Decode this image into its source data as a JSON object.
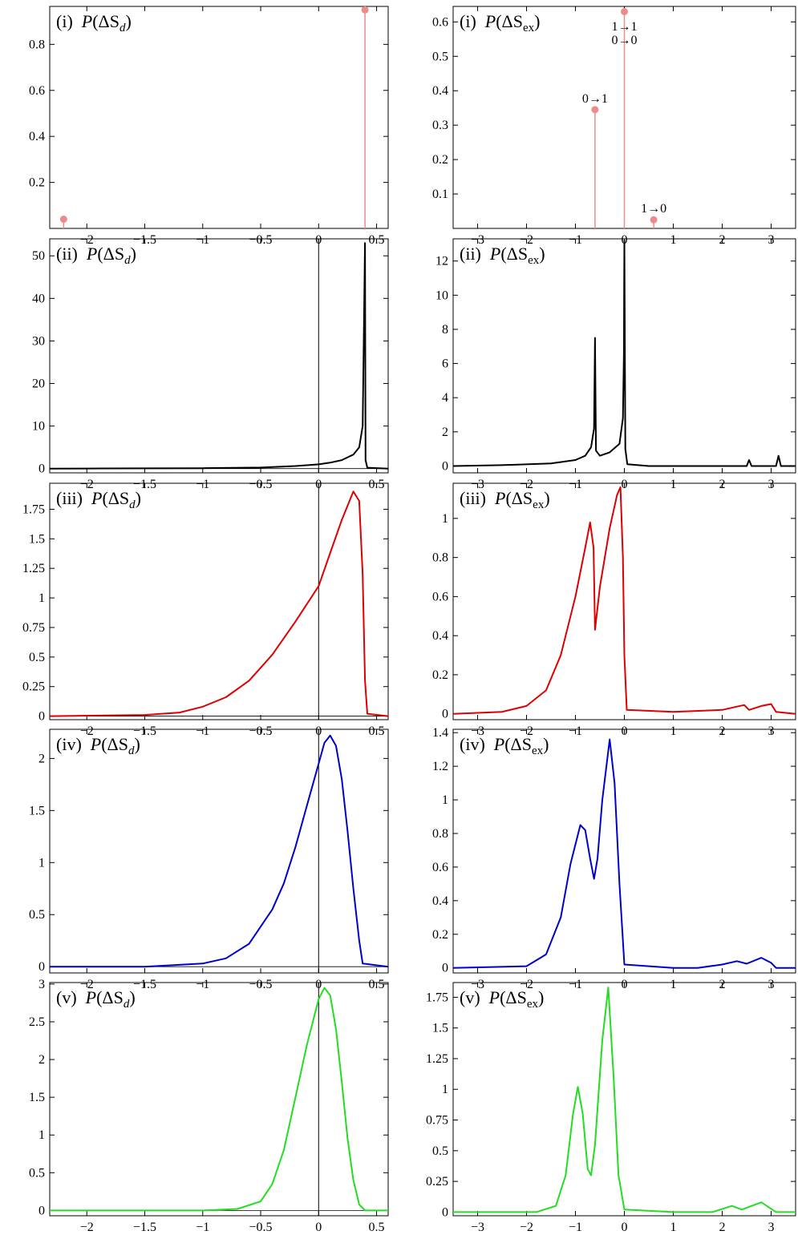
{
  "chart_data": [
    {
      "id": "d1",
      "panel": "(i)",
      "quantity": "d",
      "type": "stem",
      "xlim": [
        -2.32,
        0.6
      ],
      "ylim": [
        0.0,
        0.965
      ],
      "xticks": [
        -2,
        -1.5,
        -1,
        -0.5,
        0,
        0.5
      ],
      "yticks": [
        0.2,
        0.4,
        0.6,
        0.8
      ],
      "color": "#ee8a8a",
      "zero_axis": false,
      "points": [
        [
          -2.2,
          0.04
        ],
        [
          0.4,
          0.95
        ]
      ],
      "annotations": []
    },
    {
      "id": "e1",
      "panel": "(i)",
      "quantity": "ex",
      "type": "stem",
      "xlim": [
        -3.5,
        3.5
      ],
      "ylim": [
        0.0,
        0.645
      ],
      "xticks": [
        -3,
        -2,
        -1,
        0,
        1,
        2,
        3
      ],
      "yticks": [
        0.1,
        0.2,
        0.3,
        0.4,
        0.5,
        0.6
      ],
      "color": "#ee8a8a",
      "zero_axis": false,
      "points": [
        [
          -0.6,
          0.345
        ],
        [
          0.0,
          0.63
        ],
        [
          0.6,
          0.025
        ]
      ],
      "annotations": [
        {
          "text": "1→1",
          "x": 0.0,
          "y": 0.575
        },
        {
          "text": "0→0",
          "x": 0.0,
          "y": 0.535
        },
        {
          "text": "0→1",
          "x": -0.6,
          "y": 0.365
        },
        {
          "text": "1→0",
          "x": 0.6,
          "y": 0.047
        }
      ]
    },
    {
      "id": "d2",
      "panel": "(ii)",
      "quantity": "d",
      "type": "line",
      "xlim": [
        -2.32,
        0.6
      ],
      "ylim": [
        -1.0,
        54.0
      ],
      "xticks": [
        -2,
        -1.5,
        -1,
        -0.5,
        0,
        0.5
      ],
      "yticks": [
        0,
        10,
        20,
        30,
        40,
        50
      ],
      "color": "#000000",
      "zero_axis": true,
      "points": [
        [
          -2.32,
          0.0
        ],
        [
          -2.0,
          0.02
        ],
        [
          -1.5,
          0.05
        ],
        [
          -1.0,
          0.1
        ],
        [
          -0.5,
          0.25
        ],
        [
          -0.2,
          0.6
        ],
        [
          0.0,
          1.0
        ],
        [
          0.1,
          1.4
        ],
        [
          0.2,
          2.0
        ],
        [
          0.3,
          3.3
        ],
        [
          0.35,
          5.0
        ],
        [
          0.38,
          10.0
        ],
        [
          0.4,
          53.0
        ],
        [
          0.405,
          2.0
        ],
        [
          0.42,
          0.2
        ],
        [
          0.6,
          0.0
        ]
      ],
      "annotations": []
    },
    {
      "id": "e2",
      "panel": "(ii)",
      "quantity": "ex",
      "type": "line",
      "xlim": [
        -3.5,
        3.5
      ],
      "ylim": [
        -0.4,
        13.3
      ],
      "xticks": [
        -3,
        -2,
        -1,
        0,
        1,
        2,
        3
      ],
      "yticks": [
        0,
        2,
        4,
        6,
        8,
        10,
        12
      ],
      "color": "#000000",
      "zero_axis": false,
      "points": [
        [
          -3.5,
          0.0
        ],
        [
          -2.5,
          0.05
        ],
        [
          -1.5,
          0.15
        ],
        [
          -1.0,
          0.35
        ],
        [
          -0.8,
          0.6
        ],
        [
          -0.68,
          1.1
        ],
        [
          -0.62,
          2.2
        ],
        [
          -0.6,
          7.5
        ],
        [
          -0.58,
          0.9
        ],
        [
          -0.5,
          0.6
        ],
        [
          -0.3,
          0.8
        ],
        [
          -0.1,
          1.3
        ],
        [
          -0.03,
          2.8
        ],
        [
          -0.01,
          6.5
        ],
        [
          0.0,
          13.2
        ],
        [
          0.02,
          1.0
        ],
        [
          0.06,
          0.1
        ],
        [
          0.5,
          0.0
        ],
        [
          2.5,
          0.0
        ],
        [
          2.55,
          0.35
        ],
        [
          2.6,
          0.0
        ],
        [
          3.1,
          0.0
        ],
        [
          3.15,
          0.6
        ],
        [
          3.2,
          0.0
        ],
        [
          3.5,
          0.0
        ]
      ],
      "annotations": []
    },
    {
      "id": "d3",
      "panel": "(iii)",
      "quantity": "d",
      "type": "line",
      "xlim": [
        -2.32,
        0.6
      ],
      "ylim": [
        -0.03,
        1.97
      ],
      "xticks": [
        -2,
        -1.5,
        -1,
        -0.5,
        0,
        0.5
      ],
      "yticks": [
        0,
        0.25,
        0.5,
        0.75,
        1,
        1.25,
        1.5,
        1.75
      ],
      "color": "#dd0000",
      "zero_axis": true,
      "points": [
        [
          -2.32,
          0.0
        ],
        [
          -1.5,
          0.01
        ],
        [
          -1.2,
          0.03
        ],
        [
          -1.0,
          0.08
        ],
        [
          -0.8,
          0.16
        ],
        [
          -0.6,
          0.3
        ],
        [
          -0.4,
          0.52
        ],
        [
          -0.2,
          0.8
        ],
        [
          0.0,
          1.1
        ],
        [
          0.1,
          1.38
        ],
        [
          0.2,
          1.66
        ],
        [
          0.3,
          1.9
        ],
        [
          0.35,
          1.82
        ],
        [
          0.38,
          1.2
        ],
        [
          0.4,
          0.3
        ],
        [
          0.42,
          0.02
        ],
        [
          0.6,
          0.0
        ]
      ],
      "annotations": []
    },
    {
      "id": "e3",
      "panel": "(iii)",
      "quantity": "ex",
      "type": "line",
      "xlim": [
        -3.5,
        3.5
      ],
      "ylim": [
        -0.03,
        1.18
      ],
      "xticks": [
        -3,
        -2,
        -1,
        0,
        1,
        2,
        3
      ],
      "yticks": [
        0,
        0.2,
        0.4,
        0.6,
        0.8,
        1
      ],
      "color": "#dd0000",
      "zero_axis": false,
      "points": [
        [
          -3.5,
          0.0
        ],
        [
          -2.5,
          0.01
        ],
        [
          -2.0,
          0.04
        ],
        [
          -1.6,
          0.12
        ],
        [
          -1.3,
          0.3
        ],
        [
          -1.0,
          0.6
        ],
        [
          -0.8,
          0.85
        ],
        [
          -0.7,
          0.98
        ],
        [
          -0.63,
          0.85
        ],
        [
          -0.6,
          0.43
        ],
        [
          -0.5,
          0.65
        ],
        [
          -0.3,
          0.95
        ],
        [
          -0.15,
          1.12
        ],
        [
          -0.08,
          1.16
        ],
        [
          -0.03,
          0.8
        ],
        [
          0.0,
          0.3
        ],
        [
          0.05,
          0.02
        ],
        [
          1.0,
          0.01
        ],
        [
          2.0,
          0.02
        ],
        [
          2.45,
          0.045
        ],
        [
          2.55,
          0.02
        ],
        [
          2.8,
          0.04
        ],
        [
          3.0,
          0.05
        ],
        [
          3.1,
          0.01
        ],
        [
          3.5,
          0.0
        ]
      ],
      "annotations": []
    },
    {
      "id": "d4",
      "panel": "(iv)",
      "quantity": "d",
      "type": "line",
      "xlim": [
        -2.32,
        0.6
      ],
      "ylim": [
        -0.06,
        2.28
      ],
      "xticks": [
        -2,
        -1.5,
        -1,
        -0.5,
        0,
        0.5
      ],
      "yticks": [
        0,
        0.5,
        1,
        1.5,
        2
      ],
      "color": "#0000cc",
      "zero_axis": true,
      "points": [
        [
          -2.32,
          0.0
        ],
        [
          -1.5,
          0.0
        ],
        [
          -1.0,
          0.03
        ],
        [
          -0.8,
          0.08
        ],
        [
          -0.6,
          0.22
        ],
        [
          -0.4,
          0.55
        ],
        [
          -0.3,
          0.8
        ],
        [
          -0.2,
          1.15
        ],
        [
          -0.1,
          1.55
        ],
        [
          0.0,
          1.95
        ],
        [
          0.05,
          2.15
        ],
        [
          0.1,
          2.22
        ],
        [
          0.15,
          2.12
        ],
        [
          0.2,
          1.8
        ],
        [
          0.25,
          1.3
        ],
        [
          0.3,
          0.75
        ],
        [
          0.35,
          0.25
        ],
        [
          0.38,
          0.03
        ],
        [
          0.6,
          0.0
        ]
      ],
      "annotations": []
    },
    {
      "id": "e4",
      "panel": "(iv)",
      "quantity": "ex",
      "type": "line",
      "xlim": [
        -3.5,
        3.5
      ],
      "ylim": [
        -0.03,
        1.42
      ],
      "xticks": [
        -3,
        -2,
        -1,
        0,
        1,
        2,
        3
      ],
      "yticks": [
        0,
        0.2,
        0.4,
        0.6,
        0.8,
        1,
        1.2,
        1.4
      ],
      "color": "#0000cc",
      "zero_axis": false,
      "points": [
        [
          -3.5,
          0.0
        ],
        [
          -2.0,
          0.01
        ],
        [
          -1.6,
          0.08
        ],
        [
          -1.3,
          0.3
        ],
        [
          -1.1,
          0.62
        ],
        [
          -0.9,
          0.85
        ],
        [
          -0.8,
          0.82
        ],
        [
          -0.7,
          0.65
        ],
        [
          -0.62,
          0.53
        ],
        [
          -0.55,
          0.65
        ],
        [
          -0.45,
          1.0
        ],
        [
          -0.3,
          1.36
        ],
        [
          -0.2,
          1.1
        ],
        [
          -0.1,
          0.5
        ],
        [
          0.0,
          0.02
        ],
        [
          1.0,
          0.0
        ],
        [
          1.5,
          0.0
        ],
        [
          2.0,
          0.02
        ],
        [
          2.3,
          0.04
        ],
        [
          2.5,
          0.025
        ],
        [
          2.8,
          0.06
        ],
        [
          3.0,
          0.03
        ],
        [
          3.1,
          0.0
        ],
        [
          3.5,
          0.0
        ]
      ],
      "annotations": []
    },
    {
      "id": "d5",
      "panel": "(v)",
      "quantity": "d",
      "type": "line",
      "xlim": [
        -2.32,
        0.6
      ],
      "ylim": [
        -0.07,
        3.02
      ],
      "xticks": [
        -2,
        -1.5,
        -1,
        -0.5,
        0,
        0.5
      ],
      "yticks": [
        0,
        0.5,
        1,
        1.5,
        2,
        2.5,
        3
      ],
      "color": "#22dd22",
      "zero_axis": true,
      "points": [
        [
          -2.32,
          0.0
        ],
        [
          -1.0,
          0.0
        ],
        [
          -0.7,
          0.02
        ],
        [
          -0.5,
          0.12
        ],
        [
          -0.4,
          0.35
        ],
        [
          -0.3,
          0.8
        ],
        [
          -0.2,
          1.5
        ],
        [
          -0.1,
          2.2
        ],
        [
          0.0,
          2.8
        ],
        [
          0.05,
          2.95
        ],
        [
          0.1,
          2.85
        ],
        [
          0.15,
          2.4
        ],
        [
          0.2,
          1.7
        ],
        [
          0.25,
          0.95
        ],
        [
          0.3,
          0.4
        ],
        [
          0.35,
          0.08
        ],
        [
          0.4,
          0.0
        ],
        [
          0.6,
          0.0
        ]
      ],
      "annotations": []
    },
    {
      "id": "e5",
      "panel": "(v)",
      "quantity": "ex",
      "type": "line",
      "xlim": [
        -3.5,
        3.5
      ],
      "ylim": [
        -0.03,
        1.87
      ],
      "xticks": [
        -3,
        -2,
        -1,
        0,
        1,
        2,
        3
      ],
      "yticks": [
        0,
        0.25,
        0.5,
        0.75,
        1,
        1.25,
        1.5,
        1.75
      ],
      "color": "#22dd22",
      "zero_axis": false,
      "points": [
        [
          -3.5,
          0.0
        ],
        [
          -1.8,
          0.0
        ],
        [
          -1.4,
          0.05
        ],
        [
          -1.2,
          0.3
        ],
        [
          -1.05,
          0.8
        ],
        [
          -0.95,
          1.02
        ],
        [
          -0.85,
          0.8
        ],
        [
          -0.75,
          0.35
        ],
        [
          -0.68,
          0.3
        ],
        [
          -0.6,
          0.55
        ],
        [
          -0.45,
          1.4
        ],
        [
          -0.33,
          1.83
        ],
        [
          -0.22,
          1.1
        ],
        [
          -0.12,
          0.3
        ],
        [
          0.0,
          0.02
        ],
        [
          1.0,
          0.0
        ],
        [
          1.8,
          0.0
        ],
        [
          2.2,
          0.05
        ],
        [
          2.4,
          0.02
        ],
        [
          2.8,
          0.08
        ],
        [
          3.1,
          0.0
        ],
        [
          3.5,
          0.0
        ]
      ],
      "annotations": []
    }
  ]
}
